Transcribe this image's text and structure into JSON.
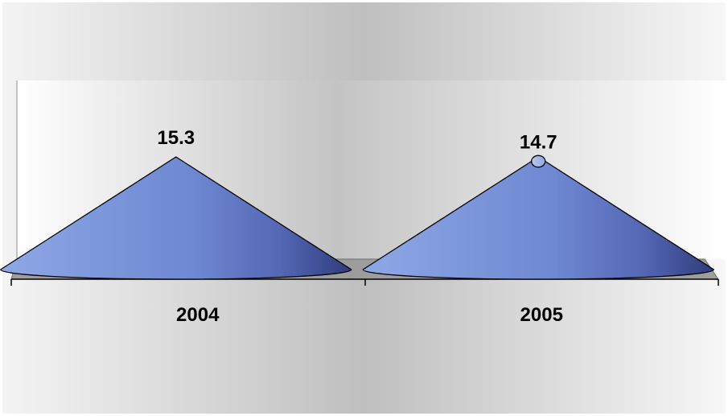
{
  "chart_data": {
    "type": "bar",
    "shape": "cone",
    "title": "",
    "xlabel": "",
    "ylabel": "",
    "categories": [
      "2004",
      "2005"
    ],
    "series": [
      {
        "values": [
          15.3,
          14.7
        ],
        "data_labels": [
          "15.3",
          "14.7"
        ]
      }
    ],
    "ylim": [
      0,
      15.3
    ],
    "grid": false,
    "legend": "none",
    "colors": {
      "cone": "#6f8fd8",
      "cone_dark": "#2f3f86",
      "cone_light": "#c8d6f6",
      "background": "#d6d6d6",
      "floor": "#9a9a9a"
    }
  }
}
